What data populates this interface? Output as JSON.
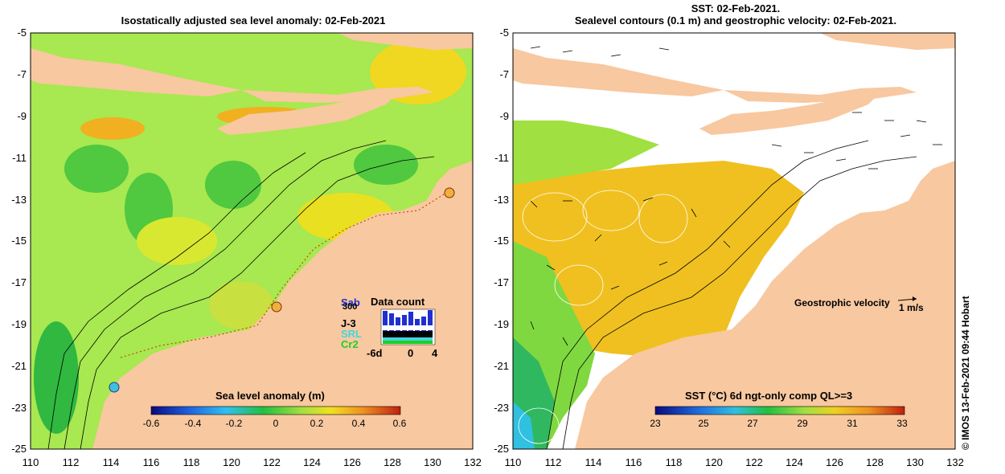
{
  "left_panel": {
    "title": "Isostatically adjusted sea level anomaly: 02-Feb-2021",
    "colorbar": {
      "title": "Sea level anomaly (m)",
      "ticks": [
        "-0.6",
        "-0.4",
        "-0.2",
        "0",
        "0.2",
        "0.4",
        "0.6"
      ]
    },
    "data_count": {
      "title": "Data count",
      "satellites": [
        {
          "label": "Sab",
          "color": "#2030d0"
        },
        {
          "label": "300",
          "color": "#000000"
        },
        {
          "label": "J-3",
          "color": "#000000"
        },
        {
          "label": "SRL",
          "color": "#40d8e0"
        },
        {
          "label": "Cr2",
          "color": "#20d020"
        }
      ],
      "axis_ticks": [
        "-6d",
        "0",
        "4"
      ]
    }
  },
  "right_panel": {
    "title_line1": "SST: 02-Feb-2021.",
    "title_line2": "Sealevel contours (0.1 m) and geostrophic velocity: 02-Feb-2021.",
    "velocity_label": "Geostrophic velocity",
    "velocity_scale_label": "1 m/s",
    "colorbar": {
      "title": "SST (°C) 6d ngt-only comp QL>=3",
      "ticks": [
        "23",
        "25",
        "27",
        "29",
        "31",
        "33"
      ]
    }
  },
  "y_ticks": [
    "-5",
    "-7",
    "-9",
    "-11",
    "-13",
    "-15",
    "-17",
    "-19",
    "-21",
    "-23",
    "-25"
  ],
  "x_ticks": [
    "110",
    "112",
    "114",
    "116",
    "118",
    "120",
    "122",
    "124",
    "126",
    "128",
    "130",
    "132"
  ],
  "credit": "© IMOS 13-Feb-2021 09:44 Hobart",
  "colors": {
    "land": "#f8c8a0",
    "ocean_green": "#a8e850",
    "ocean_yellow": "#f0e020",
    "ocean_orange": "#f0a020"
  }
}
